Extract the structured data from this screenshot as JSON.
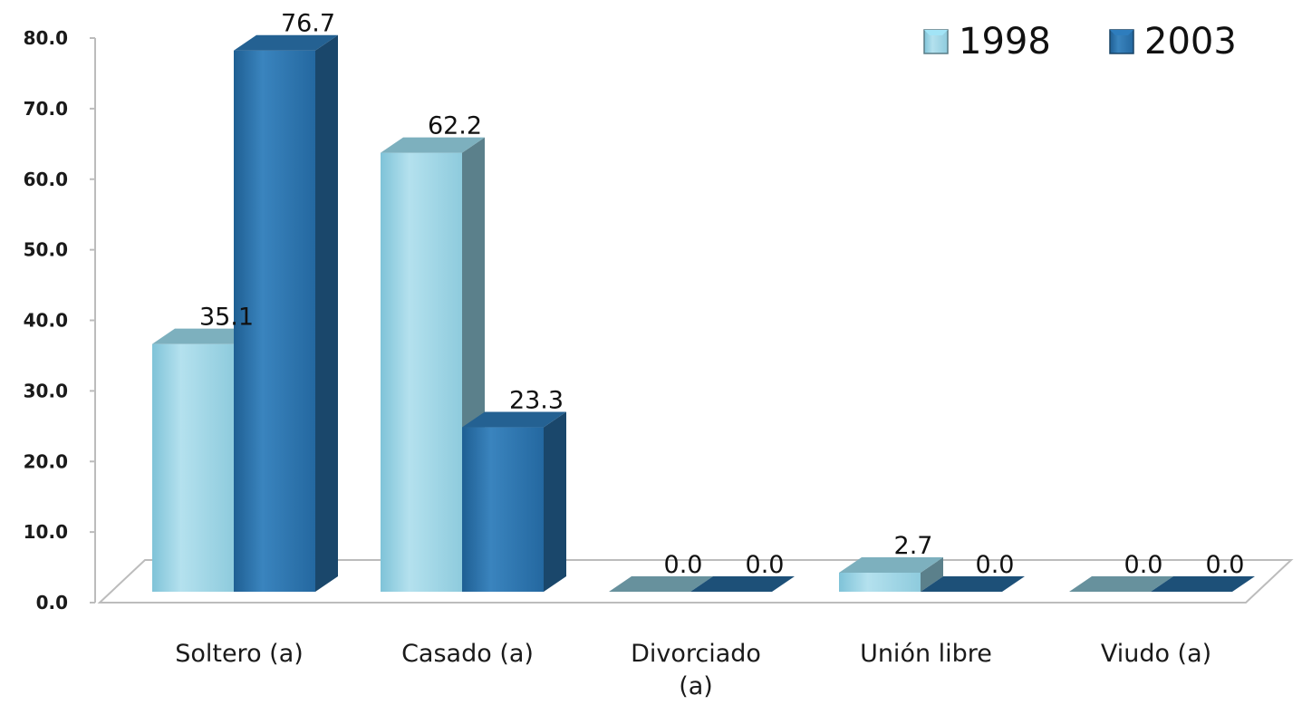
{
  "chart_data": {
    "type": "bar",
    "categories": [
      "Soltero (a)",
      "Casado (a)",
      "Divorciado (a)",
      "Unión libre",
      "Viudo (a)"
    ],
    "category_lines": [
      [
        "Soltero (a)"
      ],
      [
        "Casado (a)"
      ],
      [
        "Divorciado",
        "(a)"
      ],
      [
        "Unión libre"
      ],
      [
        "Viudo (a)"
      ]
    ],
    "series": [
      {
        "name": "1998",
        "values": [
          35.1,
          62.2,
          0.0,
          2.7,
          0.0
        ],
        "color": "#93cfe0"
      },
      {
        "name": "2003",
        "values": [
          76.7,
          23.3,
          0.0,
          0.0,
          0.0
        ],
        "color": "#2a72ac"
      }
    ],
    "value_labels": {
      "1998": [
        "35.1",
        "62.2",
        "0.0",
        "2.7",
        "0.0"
      ],
      "2003": [
        "76.7",
        "23.3",
        "0.0",
        "0.0",
        "0.0"
      ]
    },
    "yticks": [
      "0.0",
      "10.0",
      "20.0",
      "30.0",
      "40.0",
      "50.0",
      "60.0",
      "70.0",
      "80.0"
    ],
    "ylim": [
      0,
      80
    ],
    "title": "",
    "xlabel": "",
    "ylabel": "",
    "legend_position": "top-right",
    "style": "3d-clustered-column",
    "grid": false
  }
}
